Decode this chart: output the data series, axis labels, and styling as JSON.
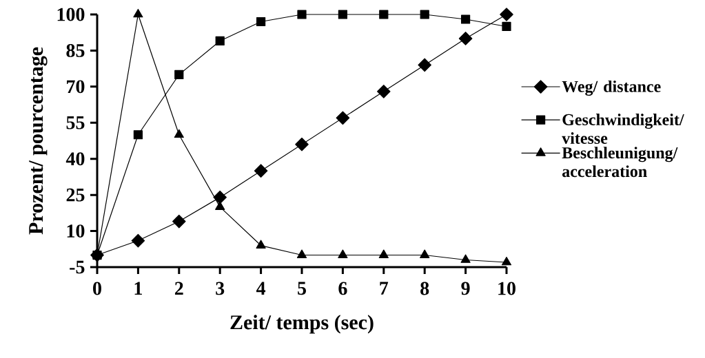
{
  "chart_data": {
    "type": "line",
    "xlabel": "Zeit/ temps (sec)",
    "ylabel": "Prozent/ pourcentage",
    "x": [
      0,
      1,
      2,
      3,
      4,
      5,
      6,
      7,
      8,
      9,
      10
    ],
    "xlim": [
      0,
      10
    ],
    "xticks": [
      0,
      1,
      2,
      3,
      4,
      5,
      6,
      7,
      8,
      9,
      10
    ],
    "ylim": [
      -5,
      100
    ],
    "yticks": [
      -5,
      10,
      25,
      40,
      55,
      70,
      85,
      100
    ],
    "grid": false,
    "legend": "right",
    "line_style": "solid",
    "series": [
      {
        "name": "Weg/ distance",
        "color": "#000000",
        "marker": "diamond",
        "values": [
          0,
          6,
          14,
          24,
          35,
          46,
          57,
          68,
          79,
          90,
          100
        ]
      },
      {
        "name": "Geschwindigkeit/ vitesse",
        "color": "#000000",
        "marker": "square",
        "values": [
          0,
          50,
          75,
          89,
          97,
          100,
          100,
          100,
          100,
          98,
          95
        ]
      },
      {
        "name": "Beschleunigung/ acceleration",
        "color": "#000000",
        "marker": "triangle",
        "values": [
          0,
          100,
          50,
          20,
          4,
          0,
          0,
          0,
          0,
          -2,
          -3
        ]
      }
    ]
  }
}
